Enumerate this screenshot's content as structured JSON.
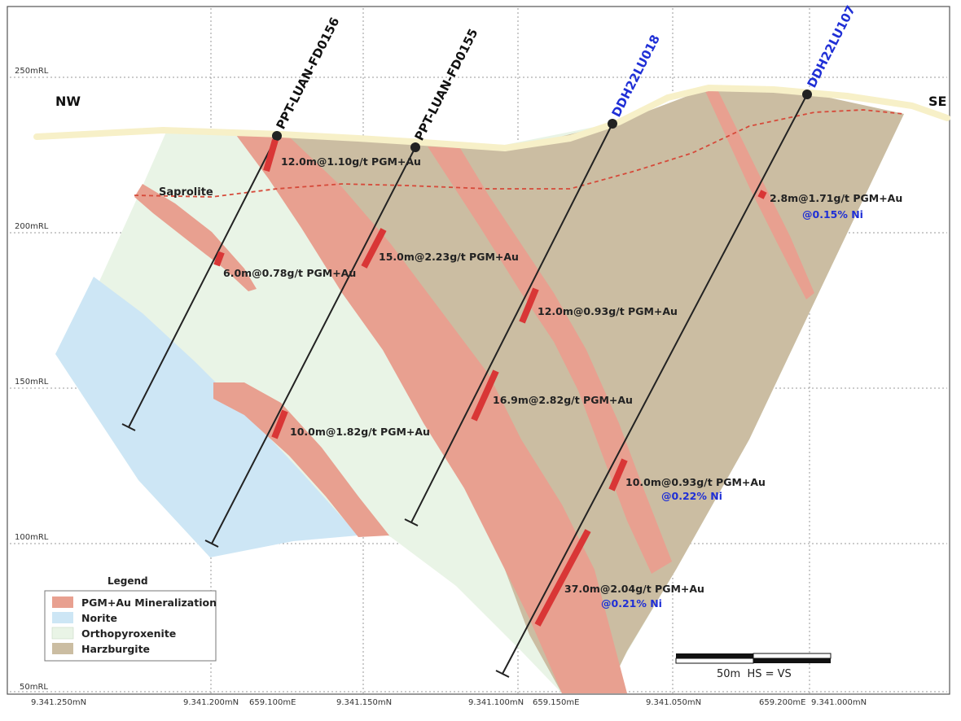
{
  "colors": {
    "mineralization": "#e8a090",
    "norite": "#cde6f5",
    "orthopyroxenite": "#e9f4e6",
    "harzburgite": "#cbbda2",
    "intercept": "#d93636",
    "ni_text": "#1f2fd6",
    "topo": "#f7f0c8",
    "saprolite_line": "#d64a3a"
  },
  "direction": {
    "left": "NW",
    "right": "SE"
  },
  "elevation_labels": [
    "250mRL",
    "200mRL",
    "150mRL",
    "100mRL",
    "50mRL"
  ],
  "easting_northing_labels": [
    "9.341.250mN",
    "9.341.200mN",
    "659.100mE",
    "9.341.150mN",
    "9.341.100mN",
    "659.150mE",
    "9.341.050mN",
    "659.200mE",
    "9.341.000mN"
  ],
  "saprolite_label": "Saprolite",
  "drillholes": [
    {
      "name": "PPT-LUAN-FD0156",
      "label_color": "#111111"
    },
    {
      "name": "PPT-LUAN-FD0155",
      "label_color": "#111111"
    },
    {
      "name": "DDH22LU018",
      "label_color": "#1f2fd6"
    },
    {
      "name": "DDH22LU107",
      "label_color": "#1f2fd6"
    }
  ],
  "intercepts": [
    {
      "text": "12.0m@1.10g/t PGM+Au"
    },
    {
      "text": "6.0m@0.78g/t PGM+Au"
    },
    {
      "text": "10.0m@1.82g/t PGM+Au"
    },
    {
      "text": "15.0m@2.23g/t PGM+Au"
    },
    {
      "text": "12.0m@0.93g/t PGM+Au"
    },
    {
      "text": "16.9m@2.82g/t PGM+Au"
    },
    {
      "text": "2.8m@1.71g/t PGM+Au",
      "ni": "@0.15% Ni"
    },
    {
      "text": "10.0m@0.93g/t PGM+Au",
      "ni": "@0.22% Ni"
    },
    {
      "text": "37.0m@2.04g/t PGM+Au",
      "ni": "@0.21% Ni"
    }
  ],
  "legend": {
    "title": "Legend",
    "items": [
      {
        "label": "PGM+Au Mineralization",
        "color": "#e8a090"
      },
      {
        "label": "Norite",
        "color": "#cde6f5"
      },
      {
        "label": "Orthopyroxenite",
        "color": "#e9f4e6"
      },
      {
        "label": "Harzburgite",
        "color": "#cbbda2"
      }
    ]
  },
  "scale_bar": {
    "label": "50m  HS = VS"
  }
}
